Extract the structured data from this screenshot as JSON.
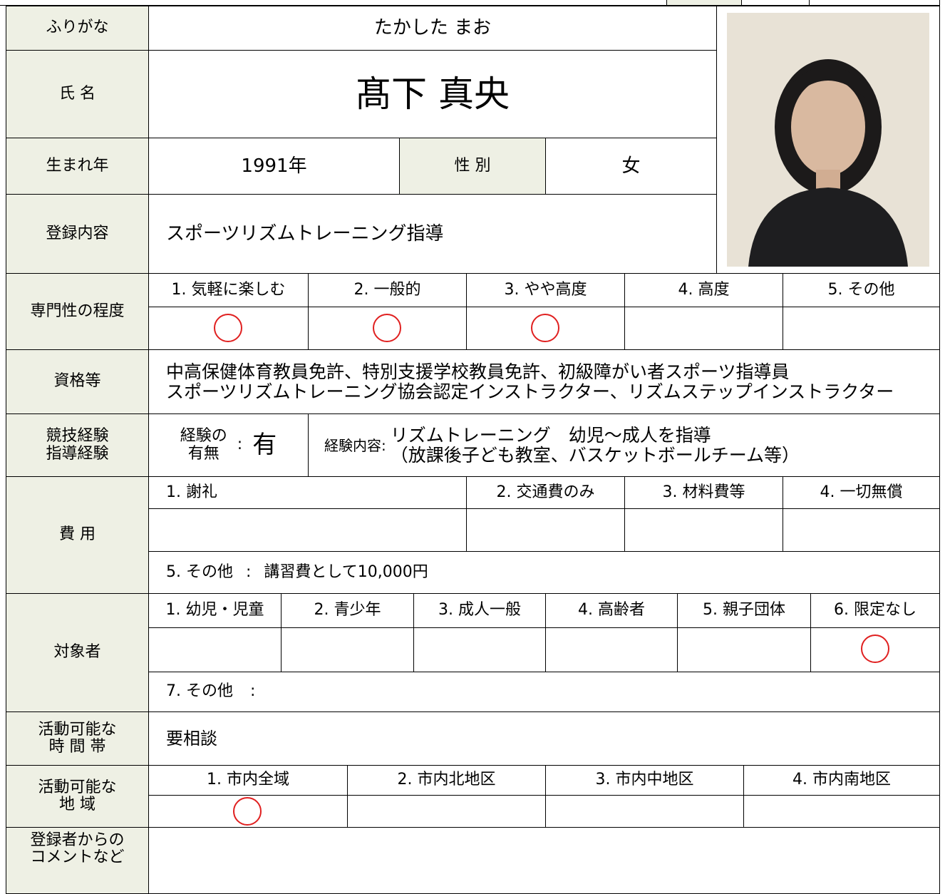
{
  "furigana_label": "ふりがな",
  "furigana": "たかした まお",
  "name_label": "氏 名",
  "name": "髙下 真央",
  "birth_label": "生まれ年",
  "birth_year": "1991年",
  "sex_label": "性 別",
  "sex": "女",
  "registration_label": "登録内容",
  "registration": "スポーツリズムトレーニング指導",
  "expertise": {
    "label": "専門性の程度",
    "options": [
      "1. 気軽に楽しむ",
      "2. 一般的",
      "3. やや高度",
      "4. 高度",
      "5. その他"
    ]
  },
  "qualifications": {
    "label": "資格等",
    "lines": [
      "中高保健体育教員免許、特別支援学校教員免許、初級障がい者スポーツ指導員",
      "スポーツリズムトレーニング協会認定インストラクター、リズムステップインストラクター"
    ]
  },
  "experience": {
    "label_lines": [
      "競技経験",
      "指導経験"
    ],
    "has_label_lines": [
      "経験の",
      "有無"
    ],
    "colon": ":",
    "has": "有",
    "detail_label": "経験内容:",
    "detail_lines": [
      "リズムトレーニング　幼児～成人を指導",
      "（放課後子ども教室、バスケットボールチーム等）"
    ]
  },
  "fees": {
    "label": "費 用",
    "options": [
      "1. 謝礼",
      "2. 交通費のみ",
      "3. 材料費等",
      "4. 一切無償"
    ],
    "other_label": "5. その他",
    "colon": ":",
    "other": "講習費として10,000円"
  },
  "audience": {
    "label": "対象者",
    "options": [
      "1. 幼児・児童",
      "2. 青少年",
      "3. 成人一般",
      "4. 高齢者",
      "5. 親子団体",
      "6. 限定なし"
    ],
    "other_label": "7. その他",
    "colon": ":"
  },
  "time": {
    "label_lines": [
      "活動可能な",
      "時 間 帯"
    ],
    "value": "要相談"
  },
  "area": {
    "label_lines": [
      "活動可能な",
      "地 域"
    ],
    "options": [
      "1. 市内全域",
      "2. 市内北地区",
      "3. 市内中地区",
      "4. 市内南地区"
    ]
  },
  "comment": {
    "label_lines": [
      "登録者からの",
      "コメントなど"
    ]
  }
}
